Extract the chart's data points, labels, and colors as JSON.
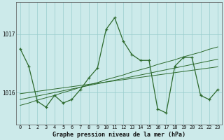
{
  "title": "Graphe pression niveau de la mer (hPa)",
  "bg_color": "#cceaea",
  "grid_color": "#99cccc",
  "line_color": "#2d6a2d",
  "x_labels": [
    "0",
    "1",
    "2",
    "3",
    "4",
    "5",
    "6",
    "7",
    "8",
    "9",
    "10",
    "11",
    "12",
    "13",
    "14",
    "15",
    "16",
    "17",
    "18",
    "19",
    "20",
    "21",
    "22",
    "23"
  ],
  "xlim": [
    -0.5,
    23.5
  ],
  "ylim": [
    1015.45,
    1017.55
  ],
  "yticks": [
    1016,
    1017
  ],
  "main": [
    1016.75,
    1016.45,
    1015.85,
    1015.75,
    1015.95,
    1015.82,
    1015.88,
    1016.05,
    1016.25,
    1016.42,
    1017.08,
    1017.28,
    1016.88,
    1016.65,
    1016.55,
    1016.55,
    1015.72,
    1015.65,
    1016.45,
    1016.6,
    1016.6,
    1015.95,
    1015.88,
    1016.05
  ],
  "trend1": [
    1015.98,
    1016.0,
    1016.02,
    1016.04,
    1016.06,
    1016.08,
    1016.1,
    1016.12,
    1016.14,
    1016.16,
    1016.18,
    1016.2,
    1016.22,
    1016.24,
    1016.26,
    1016.28,
    1016.3,
    1016.32,
    1016.34,
    1016.36,
    1016.38,
    1016.4,
    1016.42,
    1016.44
  ],
  "trend2": [
    1015.88,
    1015.91,
    1015.94,
    1015.97,
    1016.0,
    1016.03,
    1016.06,
    1016.09,
    1016.12,
    1016.15,
    1016.18,
    1016.21,
    1016.24,
    1016.27,
    1016.3,
    1016.33,
    1016.36,
    1016.39,
    1016.42,
    1016.45,
    1016.48,
    1016.51,
    1016.54,
    1016.57
  ],
  "trend3": [
    1015.78,
    1015.82,
    1015.87,
    1015.91,
    1015.95,
    1016.0,
    1016.04,
    1016.09,
    1016.13,
    1016.17,
    1016.22,
    1016.26,
    1016.3,
    1016.35,
    1016.39,
    1016.43,
    1016.48,
    1016.52,
    1016.56,
    1016.61,
    1016.65,
    1016.69,
    1016.74,
    1016.78
  ]
}
